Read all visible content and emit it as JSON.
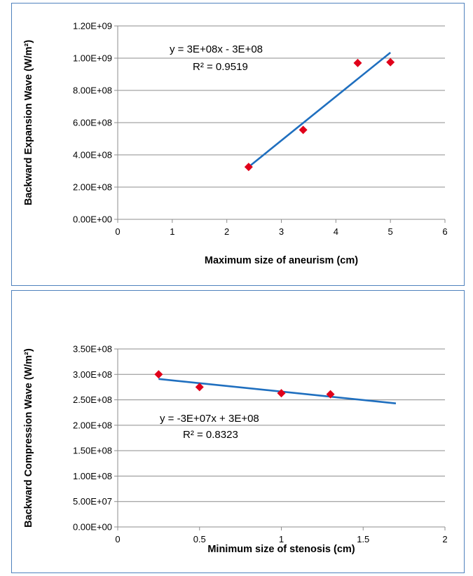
{
  "chart_data": [
    {
      "type": "scatter",
      "xlabel": "Maximum size of aneurism (cm)",
      "ylabel": "Backward Expansion Wave (W/m²)",
      "xlim": [
        0,
        6
      ],
      "ylim": [
        0,
        1200000000
      ],
      "x_ticks": [
        0,
        1,
        2,
        3,
        4,
        5,
        6
      ],
      "x_tick_labels": [
        "0",
        "1",
        "2",
        "3",
        "4",
        "5",
        "6"
      ],
      "y_ticks": [
        0,
        200000000,
        400000000,
        600000000,
        800000000,
        1000000000,
        1200000000
      ],
      "y_tick_labels": [
        "0.00E+00",
        "2.00E+08",
        "4.00E+08",
        "6.00E+08",
        "8.00E+08",
        "1.00E+09",
        "1.20E+09"
      ],
      "grid": "horizontal",
      "legend": "none",
      "points": {
        "x": [
          2.4,
          3.4,
          4.4,
          5.0
        ],
        "y": [
          325000000,
          555000000,
          970000000,
          975000000
        ]
      },
      "trendline": {
        "type": "linear",
        "x": [
          2.4,
          5.0
        ],
        "y": [
          325000000,
          1035000000
        ]
      },
      "annotations": [
        "y = 3E+08x - 3E+08",
        "R² = 0.9519"
      ],
      "colors": {
        "marker": "#e0001a",
        "trendline": "#1f6fbf",
        "grid": "#8c8c8c"
      }
    },
    {
      "type": "scatter",
      "xlabel": "Minimum size of stenosis (cm)",
      "ylabel": "Backward Compression Wave (W/m²)",
      "xlim": [
        0,
        2
      ],
      "ylim": [
        0,
        350000000
      ],
      "x_ticks": [
        0,
        0.5,
        1,
        1.5,
        2
      ],
      "x_tick_labels": [
        "0",
        "0.5",
        "1",
        "1.5",
        "2"
      ],
      "y_ticks": [
        0,
        50000000,
        100000000,
        150000000,
        200000000,
        250000000,
        300000000,
        350000000
      ],
      "y_tick_labels": [
        "0.00E+00",
        "5.00E+07",
        "1.00E+08",
        "1.50E+08",
        "2.00E+08",
        "2.50E+08",
        "3.00E+08",
        "3.50E+08"
      ],
      "grid": "horizontal",
      "legend": "none",
      "points": {
        "x": [
          0.25,
          0.5,
          1.0,
          1.3
        ],
        "y": [
          300000000,
          275000000,
          263000000,
          261000000
        ]
      },
      "trendline": {
        "type": "linear",
        "x": [
          0.25,
          1.7
        ],
        "y": [
          291000000,
          243000000
        ]
      },
      "annotations": [
        "y = -3E+07x + 3E+08",
        "R² = 0.8323"
      ],
      "colors": {
        "marker": "#e0001a",
        "trendline": "#1f6fbf",
        "grid": "#8c8c8c"
      }
    }
  ]
}
